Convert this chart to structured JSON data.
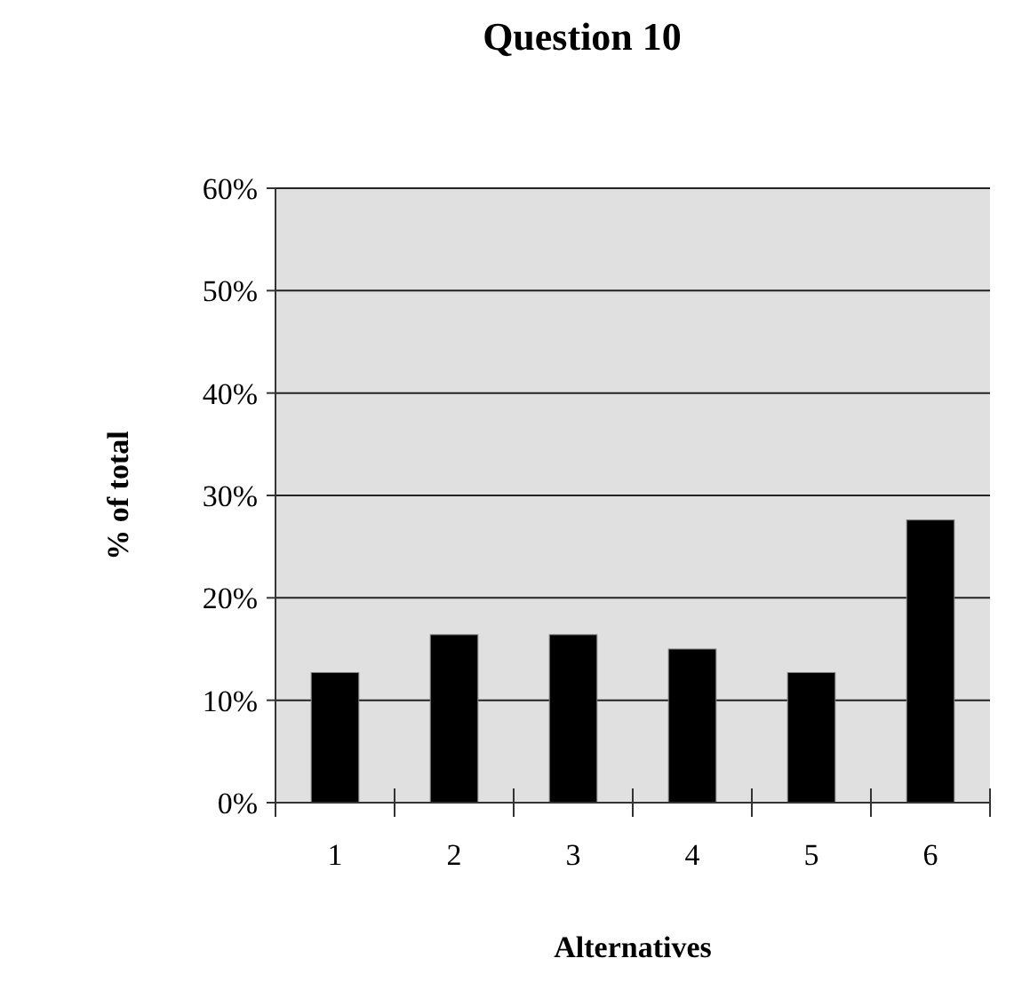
{
  "chart_data": {
    "type": "bar",
    "title": "Question 10",
    "xlabel": "Alternatives",
    "ylabel": "% of total",
    "categories": [
      "1",
      "2",
      "3",
      "4",
      "5",
      "6"
    ],
    "values": [
      12.7,
      16.4,
      16.4,
      15.0,
      12.7,
      27.6
    ],
    "color": "#000000",
    "ylim": [
      0,
      60
    ],
    "yticks": [
      {
        "value": 0,
        "label": "0%"
      },
      {
        "value": 10,
        "label": "10%"
      },
      {
        "value": 20,
        "label": "20%"
      },
      {
        "value": 30,
        "label": "30%"
      },
      {
        "value": 40,
        "label": "40%"
      },
      {
        "value": 50,
        "label": "50%"
      },
      {
        "value": 60,
        "label": "60%"
      }
    ],
    "grid": "y"
  }
}
